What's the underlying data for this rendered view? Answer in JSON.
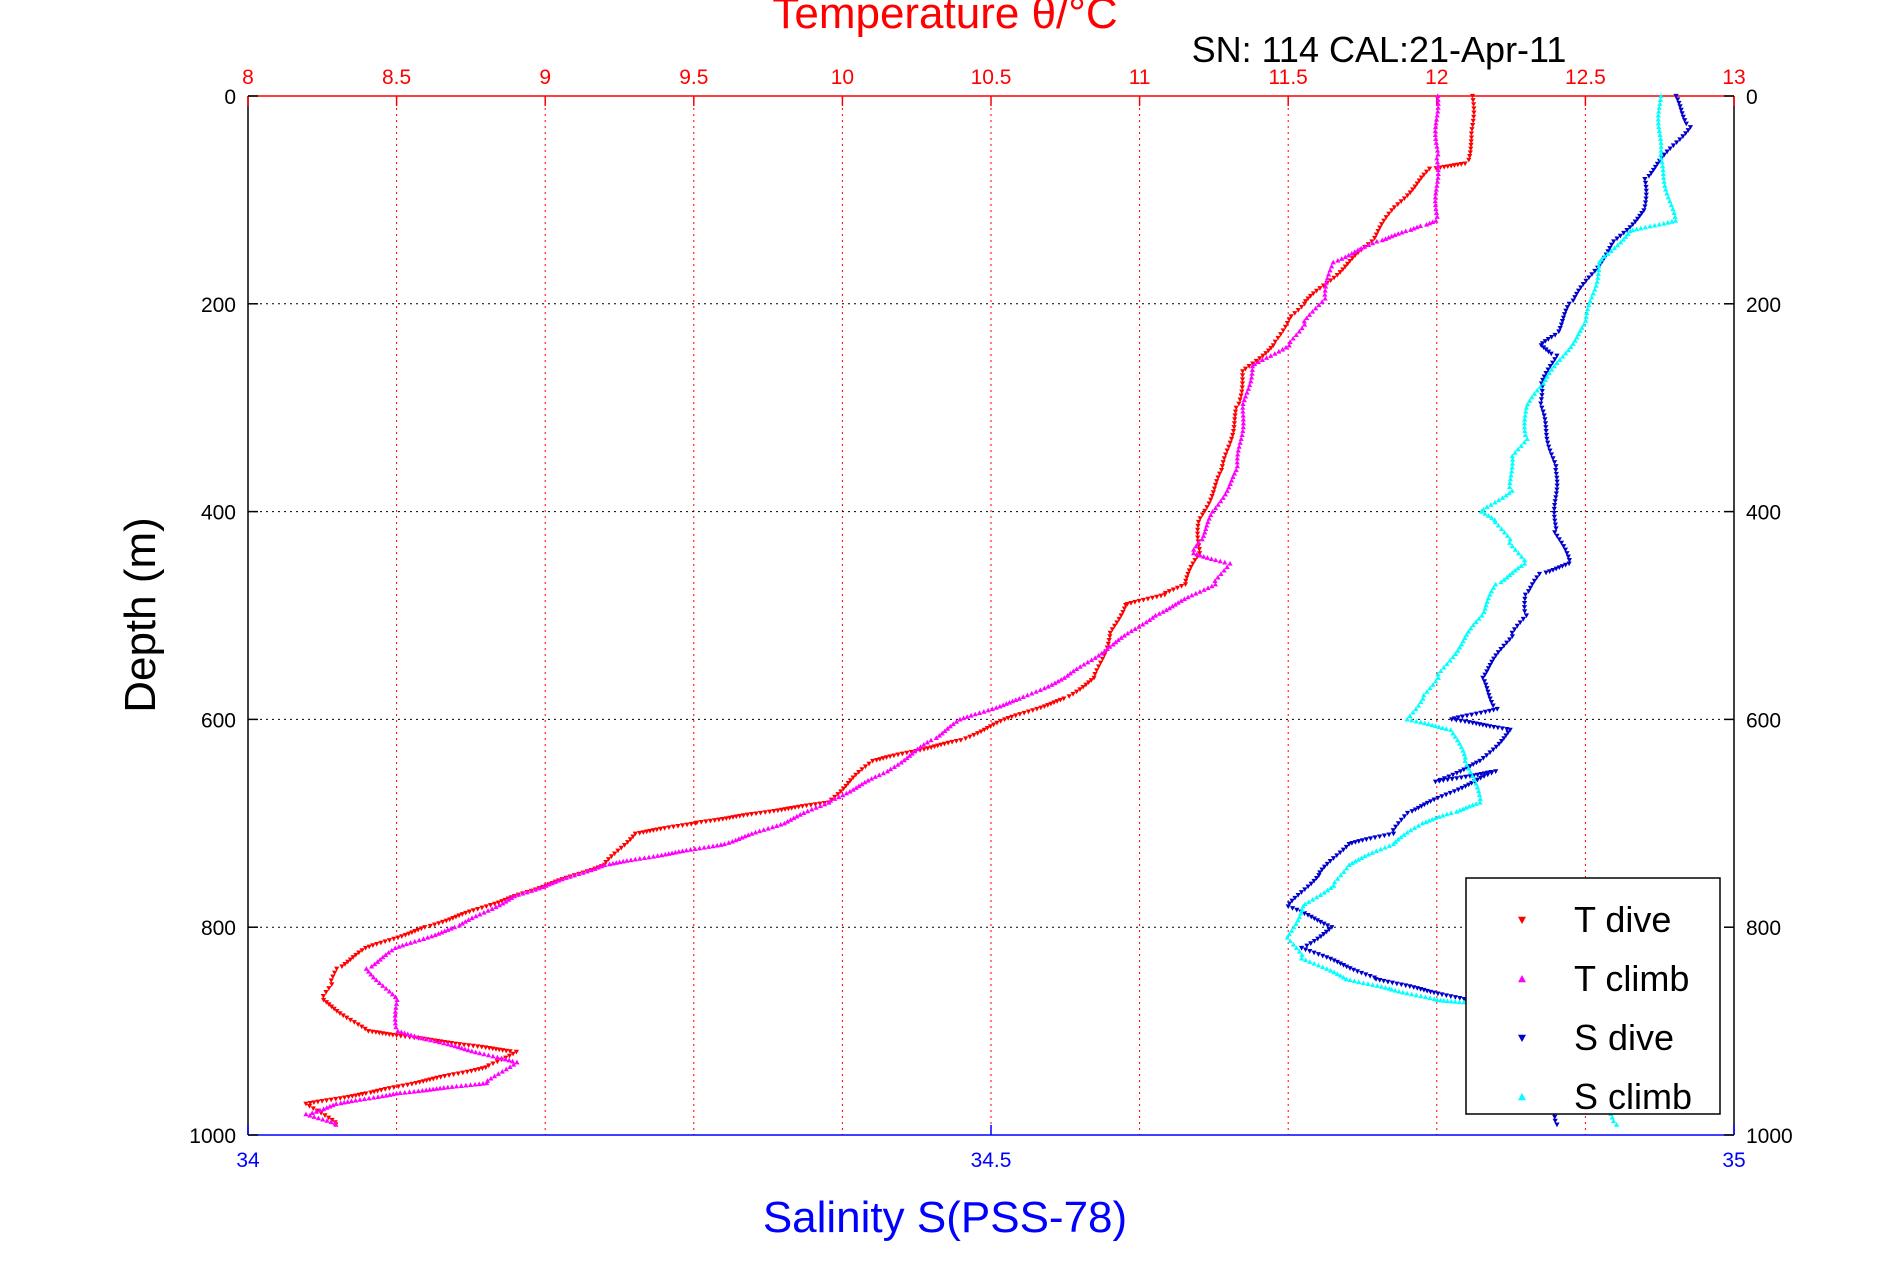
{
  "chart_data": {
    "type": "scatter",
    "title": "Temperature θ/°C",
    "subtitle": "SN: 114  CAL:21-Apr-11",
    "xlabel_top": "Temperature θ/°C",
    "xlabel_bottom": "Salinity S(PSS-78)",
    "ylabel": "Depth (m)",
    "top_axis": {
      "range": [
        8,
        13
      ],
      "ticks": [
        "8",
        "8.5",
        "9",
        "9.5",
        "10",
        "10.5",
        "11",
        "11.5",
        "12",
        "12.5",
        "13"
      ],
      "color": "#ff0000"
    },
    "bottom_axis": {
      "range": [
        34,
        35
      ],
      "ticks": [
        "34",
        "34.5",
        "35"
      ],
      "color": "#0000ff"
    },
    "y_axis": {
      "range": [
        0,
        1000
      ],
      "reversed": true,
      "ticks": [
        "0",
        "200",
        "400",
        "600",
        "800",
        "1000"
      ]
    },
    "grid": true,
    "legend_position": "bottom-right",
    "legend": [
      {
        "label": "T dive",
        "color": "#ff0000",
        "marker": "triangle-down"
      },
      {
        "label": "T climb",
        "color": "#ff00ff",
        "marker": "triangle-up"
      },
      {
        "label": "S dive",
        "color": "#0000cc",
        "marker": "triangle-down"
      },
      {
        "label": "S climb",
        "color": "#00ffff",
        "marker": "triangle-up"
      }
    ],
    "series": [
      {
        "name": "T dive",
        "axis": "temperature",
        "color": "#ff0000",
        "marker": "triangle-down",
        "x": [
          12.12,
          12.12,
          12.1,
          11.98,
          11.85,
          11.78,
          11.65,
          11.55,
          11.5,
          11.45,
          11.35,
          11.33,
          11.28,
          11.2,
          11.2,
          11.15,
          11.08,
          10.95,
          10.9,
          10.85,
          10.75,
          10.55,
          10.4,
          10.1,
          9.95,
          9.5,
          9.3,
          9.2,
          8.9,
          8.6,
          8.4,
          8.3,
          8.28,
          8.25,
          8.4,
          8.9,
          8.8,
          8.4,
          8.2,
          8.3
        ],
        "y": [
          0,
          40,
          65,
          70,
          110,
          140,
          175,
          200,
          215,
          240,
          265,
          300,
          360,
          410,
          440,
          470,
          480,
          490,
          520,
          560,
          580,
          600,
          620,
          640,
          680,
          700,
          710,
          740,
          770,
          800,
          820,
          840,
          855,
          870,
          900,
          920,
          935,
          960,
          970,
          990
        ]
      },
      {
        "name": "T climb",
        "axis": "temperature",
        "color": "#ff00ff",
        "marker": "triangle-up",
        "x": [
          12.0,
          12.0,
          12.0,
          11.95,
          11.9,
          11.8,
          11.65,
          11.62,
          11.55,
          11.5,
          11.38,
          11.35,
          11.33,
          11.25,
          11.2,
          11.18,
          11.3,
          11.25,
          11.05,
          10.9,
          10.75,
          10.6,
          10.4,
          10.3,
          10.15,
          9.95,
          9.8,
          9.6,
          9.2,
          8.9,
          8.7,
          8.5,
          8.4,
          8.5,
          8.5,
          8.9,
          8.8,
          8.5,
          8.3,
          8.2,
          8.3
        ],
        "y": [
          0,
          60,
          120,
          125,
          130,
          140,
          160,
          195,
          220,
          240,
          260,
          300,
          360,
          400,
          430,
          440,
          450,
          470,
          500,
          530,
          560,
          580,
          600,
          620,
          650,
          680,
          700,
          720,
          740,
          770,
          800,
          820,
          840,
          870,
          900,
          930,
          950,
          960,
          970,
          980,
          990
        ]
      },
      {
        "name": "S dive",
        "axis": "salinity",
        "color": "#0000cc",
        "marker": "triangle-down",
        "x": [
          34.96,
          34.97,
          34.94,
          34.94,
          34.92,
          34.89,
          34.88,
          34.87,
          34.88,
          34.87,
          34.87,
          34.88,
          34.88,
          34.89,
          34.87,
          34.86,
          34.86,
          34.85,
          34.83,
          34.84,
          34.81,
          34.85,
          34.83,
          34.8,
          34.84,
          34.78,
          34.77,
          34.74,
          34.72,
          34.7,
          34.73,
          34.71,
          34.76,
          34.82,
          34.86,
          34.88
        ],
        "y": [
          0,
          30,
          80,
          110,
          140,
          200,
          230,
          240,
          250,
          280,
          300,
          360,
          420,
          450,
          460,
          480,
          500,
          520,
          560,
          590,
          600,
          610,
          640,
          660,
          650,
          690,
          710,
          720,
          750,
          780,
          800,
          820,
          850,
          870,
          880,
          990
        ]
      },
      {
        "name": "S climb",
        "axis": "salinity",
        "color": "#00ffff",
        "marker": "triangle-up",
        "x": [
          34.95,
          34.95,
          34.96,
          34.93,
          34.91,
          34.9,
          34.88,
          34.87,
          34.86,
          34.86,
          34.85,
          34.85,
          34.83,
          34.84,
          34.85,
          34.86,
          34.84,
          34.83,
          34.81,
          34.8,
          34.79,
          34.78,
          34.81,
          34.82,
          34.83,
          34.81,
          34.79,
          34.77,
          34.74,
          34.73,
          34.71,
          34.7,
          34.71,
          34.74,
          34.77,
          34.8,
          34.88,
          34.92
        ],
        "y": [
          0,
          60,
          120,
          130,
          160,
          220,
          260,
          280,
          300,
          330,
          350,
          380,
          400,
          410,
          430,
          450,
          470,
          500,
          540,
          560,
          580,
          600,
          610,
          640,
          680,
          690,
          700,
          720,
          740,
          760,
          780,
          810,
          830,
          850,
          860,
          870,
          880,
          990
        ]
      }
    ]
  }
}
